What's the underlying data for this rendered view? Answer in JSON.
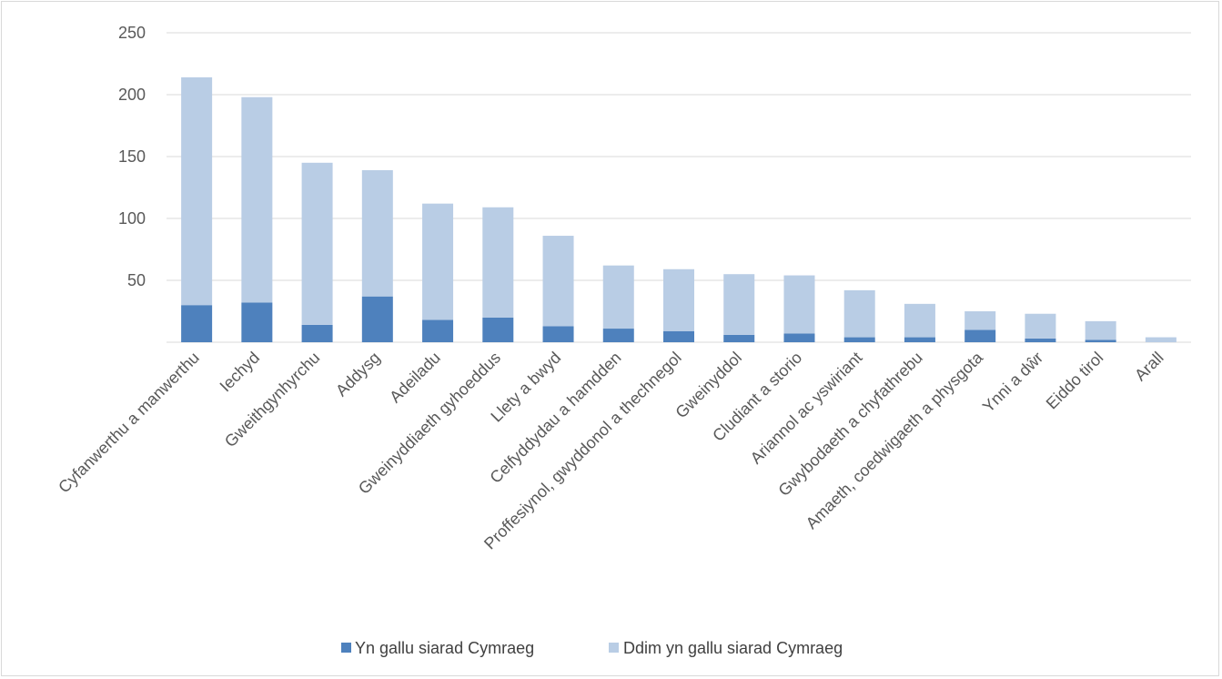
{
  "chart_data": {
    "type": "bar",
    "stacked": true,
    "categories": [
      "Cyfanwerthu a manwerthu",
      "Iechyd",
      "Gweithgynhyrchu",
      "Addysg",
      "Adeiladu",
      "Gweinyddiaeth gyhoeddus",
      "Llety a bwyd",
      "Celfyddydau a hamdden",
      "Proffesiynol, gwyddonol a thechnegol",
      "Gweinyddol",
      "Cludiant a storio",
      "Ariannol ac yswiriant",
      "Gwybodaeth a chyfathrebu",
      "Amaeth, coedwigaeth a physgota",
      "Ynni a dŵr",
      "Eiddo tirol",
      "Arall"
    ],
    "series": [
      {
        "name": "Yn gallu siarad Cymraeg",
        "values": [
          30,
          32,
          14,
          37,
          18,
          20,
          13,
          11,
          9,
          6,
          7,
          4,
          4,
          10,
          3,
          2,
          0
        ],
        "color": "#4e81bd"
      },
      {
        "name": "Ddim yn gallu siarad Cymraeg",
        "values": [
          184,
          166,
          131,
          102,
          94,
          89,
          73,
          51,
          50,
          49,
          47,
          38,
          27,
          15,
          20,
          15,
          4
        ],
        "color": "#b9cde5"
      }
    ],
    "title": "",
    "xlabel": "",
    "ylabel": "",
    "ylim": [
      0,
      250
    ],
    "yticks": [
      50,
      100,
      150,
      200,
      250
    ],
    "grid": true,
    "legend": "bottom"
  }
}
